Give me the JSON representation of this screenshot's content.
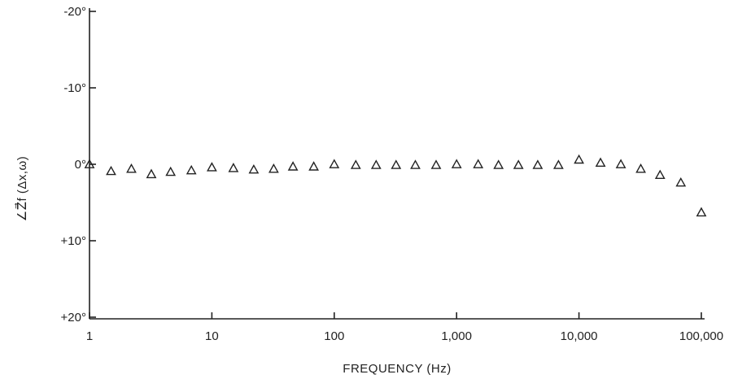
{
  "chart_data": {
    "type": "scatter",
    "title": "",
    "xlabel": "FREQUENCY (Hz)",
    "ylabel": "∠Z⃗f (Δx,ω)",
    "x_scale": "log",
    "xlim": [
      1,
      100000
    ],
    "ylim": [
      -25,
      25
    ],
    "y_axis_inverted": true,
    "marker": "open-triangle",
    "grid": false,
    "x_ticks": [
      {
        "value": 1,
        "label": "1"
      },
      {
        "value": 10,
        "label": "10"
      },
      {
        "value": 100,
        "label": "100"
      },
      {
        "value": 1000,
        "label": "1,000"
      },
      {
        "value": 10000,
        "label": "10,000"
      },
      {
        "value": 100000,
        "label": "100,000"
      }
    ],
    "y_ticks": [
      {
        "value": -20,
        "label": "-20°"
      },
      {
        "value": -10,
        "label": "-10°"
      },
      {
        "value": 0,
        "label": "0°"
      },
      {
        "value": 10,
        "label": "+10°"
      },
      {
        "value": 20,
        "label": "+20°"
      }
    ],
    "x": [
      1,
      1.5,
      2.2,
      3.2,
      4.6,
      6.8,
      10,
      15,
      22,
      32,
      46,
      68,
      100,
      150,
      220,
      320,
      460,
      680,
      1000,
      1500,
      2200,
      3200,
      4600,
      6800,
      10000,
      15000,
      22000,
      32000,
      46000,
      68000,
      100000
    ],
    "y": [
      0.0,
      0.9,
      0.6,
      1.3,
      1.0,
      0.8,
      0.4,
      0.5,
      0.7,
      0.6,
      0.3,
      0.3,
      0.0,
      0.1,
      0.1,
      0.1,
      0.1,
      0.1,
      0.0,
      0.0,
      0.1,
      0.1,
      0.1,
      0.1,
      -0.6,
      -0.2,
      0.0,
      0.6,
      1.4,
      2.4,
      6.3
    ]
  }
}
